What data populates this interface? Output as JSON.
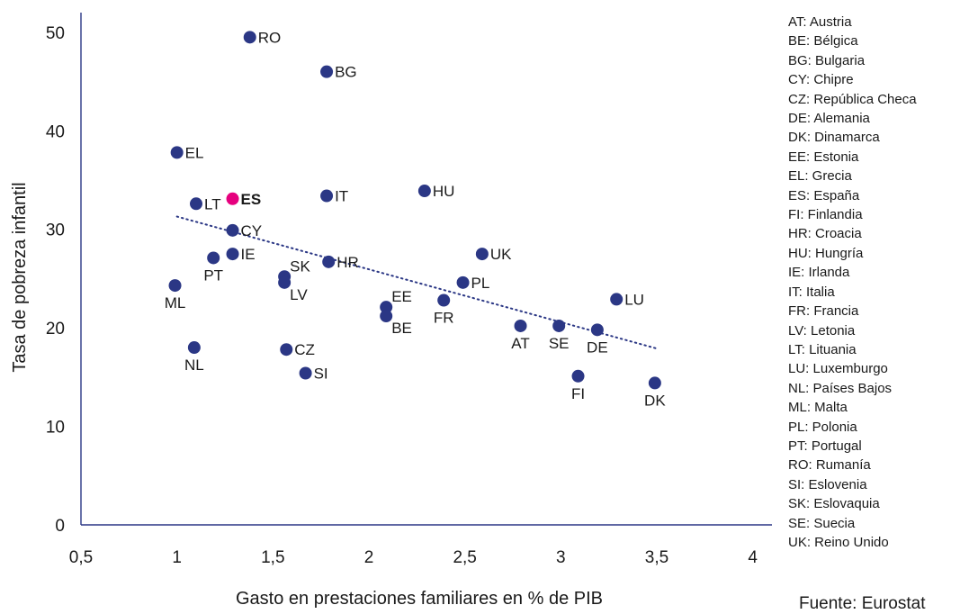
{
  "chart_data": {
    "type": "scatter",
    "xlabel": "Gasto en prestaciones familiares en % de PIB",
    "ylabel": "Tasa de pobreza infantil",
    "xlim": [
      0.5,
      4.1
    ],
    "ylim": [
      0,
      52
    ],
    "x_ticks": [
      {
        "value": 0.5,
        "label": "0,5"
      },
      {
        "value": 1,
        "label": "1"
      },
      {
        "value": 1.5,
        "label": "1,5"
      },
      {
        "value": 2,
        "label": "2"
      },
      {
        "value": 2.5,
        "label": "2,5"
      },
      {
        "value": 3,
        "label": "3"
      },
      {
        "value": 3.5,
        "label": "3,5"
      },
      {
        "value": 4,
        "label": "4"
      }
    ],
    "y_ticks": [
      {
        "value": 0,
        "label": "0"
      },
      {
        "value": 10,
        "label": "10"
      },
      {
        "value": 20,
        "label": "20"
      },
      {
        "value": 30,
        "label": "30"
      },
      {
        "value": 40,
        "label": "40"
      },
      {
        "value": 50,
        "label": "50"
      }
    ],
    "grid": false,
    "trendline": {
      "x": [
        1.0,
        3.5
      ],
      "y": [
        31.3,
        17.9
      ],
      "style": "dotted"
    },
    "colors": {
      "points": "#2b3785",
      "highlight": "#e6007e",
      "trendline": "#2b3785",
      "axis": "#2b3785"
    },
    "points": [
      {
        "code": "RO",
        "x": 1.38,
        "y": 49.5,
        "pos": "right"
      },
      {
        "code": "BG",
        "x": 1.78,
        "y": 46.0,
        "pos": "right"
      },
      {
        "code": "EL",
        "x": 1.0,
        "y": 37.8,
        "pos": "right"
      },
      {
        "code": "LT",
        "x": 1.1,
        "y": 32.6,
        "pos": "right"
      },
      {
        "code": "ES",
        "x": 1.29,
        "y": 33.1,
        "pos": "right",
        "highlight": true
      },
      {
        "code": "IT",
        "x": 1.78,
        "y": 33.4,
        "pos": "right"
      },
      {
        "code": "HU",
        "x": 2.29,
        "y": 33.9,
        "pos": "right"
      },
      {
        "code": "CY",
        "x": 1.29,
        "y": 29.9,
        "pos": "right"
      },
      {
        "code": "IE",
        "x": 1.29,
        "y": 27.5,
        "pos": "right"
      },
      {
        "code": "PT",
        "x": 1.19,
        "y": 27.1,
        "pos": "below"
      },
      {
        "code": "UK",
        "x": 2.59,
        "y": 27.5,
        "pos": "right"
      },
      {
        "code": "HR",
        "x": 1.79,
        "y": 26.7,
        "pos": "right"
      },
      {
        "code": "SK",
        "x": 1.56,
        "y": 25.2,
        "pos": "above-right"
      },
      {
        "code": "LV",
        "x": 1.56,
        "y": 24.6,
        "pos": "below-right"
      },
      {
        "code": "PL",
        "x": 2.49,
        "y": 24.6,
        "pos": "right"
      },
      {
        "code": "ML",
        "x": 0.99,
        "y": 24.3,
        "pos": "below"
      },
      {
        "code": "LU",
        "x": 3.29,
        "y": 22.9,
        "pos": "right"
      },
      {
        "code": "FR",
        "x": 2.39,
        "y": 22.8,
        "pos": "below"
      },
      {
        "code": "EE",
        "x": 2.09,
        "y": 22.1,
        "pos": "above-right"
      },
      {
        "code": "BE",
        "x": 2.09,
        "y": 21.2,
        "pos": "below-right"
      },
      {
        "code": "AT",
        "x": 2.79,
        "y": 20.2,
        "pos": "below"
      },
      {
        "code": "SE",
        "x": 2.99,
        "y": 20.2,
        "pos": "below"
      },
      {
        "code": "DE",
        "x": 3.19,
        "y": 19.8,
        "pos": "below"
      },
      {
        "code": "NL",
        "x": 1.09,
        "y": 18.0,
        "pos": "below"
      },
      {
        "code": "CZ",
        "x": 1.57,
        "y": 17.8,
        "pos": "right"
      },
      {
        "code": "SI",
        "x": 1.67,
        "y": 15.4,
        "pos": "right"
      },
      {
        "code": "FI",
        "x": 3.09,
        "y": 15.1,
        "pos": "below"
      },
      {
        "code": "DK",
        "x": 3.49,
        "y": 14.4,
        "pos": "below"
      }
    ],
    "legend": [
      "AT: Austria",
      "BE: Bélgica",
      "BG: Bulgaria",
      "CY: Chipre",
      "CZ: República Checa",
      "DE: Alemania",
      "DK: Dinamarca",
      "EE: Estonia",
      "EL: Grecia",
      "ES: España",
      "FI: Finlandia",
      "HR: Croacia",
      "HU: Hungría",
      "IE: Irlanda",
      "IT: Italia",
      "FR: Francia",
      "LV: Letonia",
      "LT: Lituania",
      "LU: Luxemburgo",
      "NL: Países Bajos",
      "ML: Malta",
      "PL: Polonia",
      "PT: Portugal",
      "RO: Rumanía",
      "SI: Eslovenia",
      "SK: Eslovaquia",
      "SE: Suecia",
      "UK: Reino Unido"
    ]
  },
  "source": "Fuente: Eurostat"
}
